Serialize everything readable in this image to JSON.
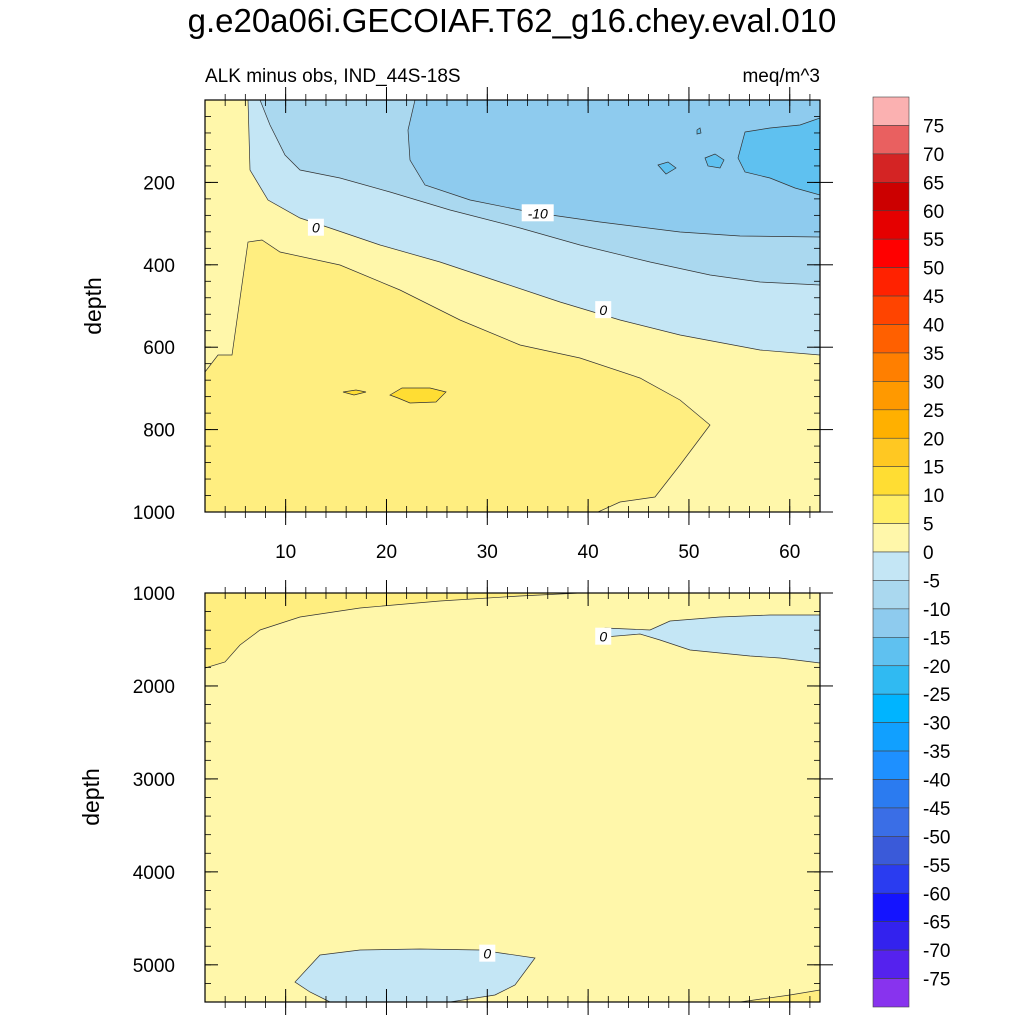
{
  "title": "g.e20a06i.GECOIAF.T62_g16.chey.eval.010",
  "chart_data": {
    "type": "contour",
    "variable_label": "ALK minus obs, IND_44S-18S",
    "units": "meq/m^3",
    "ylabel": "depth",
    "x_range": [
      2,
      63
    ],
    "x_ticks": [
      10,
      20,
      30,
      40,
      50,
      60
    ],
    "panels": [
      {
        "name": "upper",
        "y_range": [
          0,
          1000
        ],
        "y_ticks": [
          200,
          400,
          600,
          800,
          1000
        ],
        "contour_labels": [
          {
            "text": "0",
            "x": 13,
            "depth": 310
          },
          {
            "text": "-10",
            "x": 35,
            "depth": 275
          },
          {
            "text": "0",
            "x": 41.5,
            "depth": 510
          }
        ]
      },
      {
        "name": "lower",
        "y_range": [
          1000,
          5400
        ],
        "y_ticks": [
          1000,
          2000,
          3000,
          4000,
          5000
        ],
        "contour_labels": [
          {
            "text": "0",
            "x": 41.5,
            "depth": 1470
          },
          {
            "text": "0",
            "x": 30,
            "depth": 4880
          }
        ]
      }
    ],
    "colorbar": {
      "labels": [
        "75",
        "70",
        "65",
        "60",
        "55",
        "50",
        "45",
        "40",
        "35",
        "30",
        "25",
        "20",
        "15",
        "10",
        "5",
        "0",
        "-5",
        "-10",
        "-15",
        "-20",
        "-25",
        "-30",
        "-35",
        "-40",
        "-45",
        "-50",
        "-55",
        "-60",
        "-65",
        "-70",
        "-75"
      ],
      "colors": [
        "#fbb1b1",
        "#e96060",
        "#d42424",
        "#cc0000",
        "#e50000",
        "#ff0000",
        "#ff2200",
        "#ff4400",
        "#ff6000",
        "#ff7f00",
        "#ff9900",
        "#ffb000",
        "#ffc822",
        "#ffdd33",
        "#ffee66",
        "#fff7aa",
        "#c4e6f5",
        "#aad8ef",
        "#8ecbee",
        "#5fc1f0",
        "#30baf2",
        "#00b4ff",
        "#11a0ff",
        "#1e90ff",
        "#2b7bf0",
        "#3a6ee6",
        "#3a5ad9",
        "#2a3cf0",
        "#1414ff",
        "#3322ee",
        "#5522ee",
        "#8833ee"
      ]
    }
  }
}
